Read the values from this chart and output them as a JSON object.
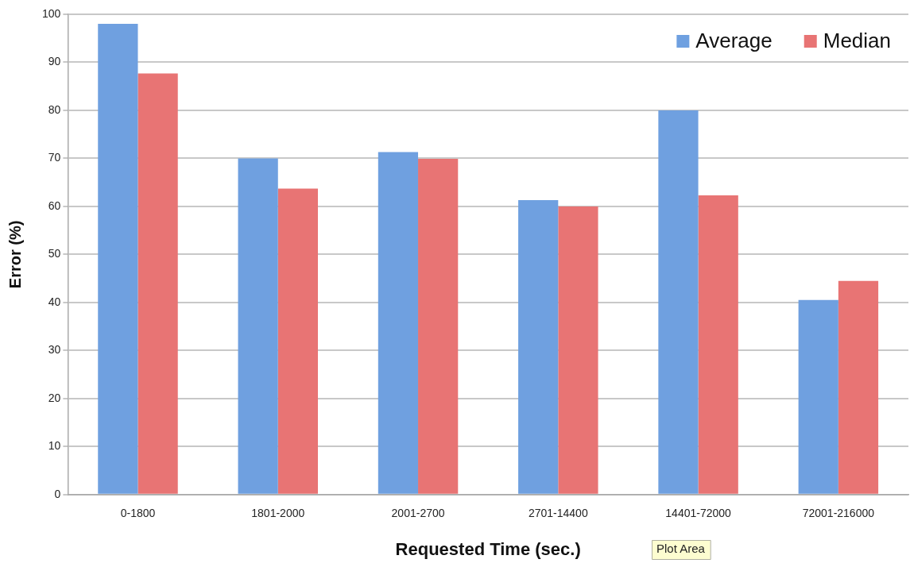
{
  "chart_data": {
    "type": "bar",
    "xlabel": "Requested Time (sec.)",
    "ylabel": "Error (%)",
    "categories": [
      "0-1800",
      "1801-2000",
      "2001-2700",
      "2701-14400",
      "14401-72000",
      "72001-216000"
    ],
    "series": [
      {
        "name": "Average",
        "color": "#6fa0e0",
        "values": [
          98,
          70,
          71.3,
          61.3,
          80,
          40.5
        ]
      },
      {
        "name": "Median",
        "color": "#e87474",
        "values": [
          87.7,
          63.7,
          69.9,
          60,
          62.3,
          44.5
        ]
      }
    ],
    "ylim": [
      0,
      100
    ],
    "yticks": [
      0,
      10,
      20,
      30,
      40,
      50,
      60,
      70,
      80,
      90,
      100
    ],
    "grid": "y",
    "legend": "top right",
    "annotations": [
      "Plot Area"
    ]
  }
}
